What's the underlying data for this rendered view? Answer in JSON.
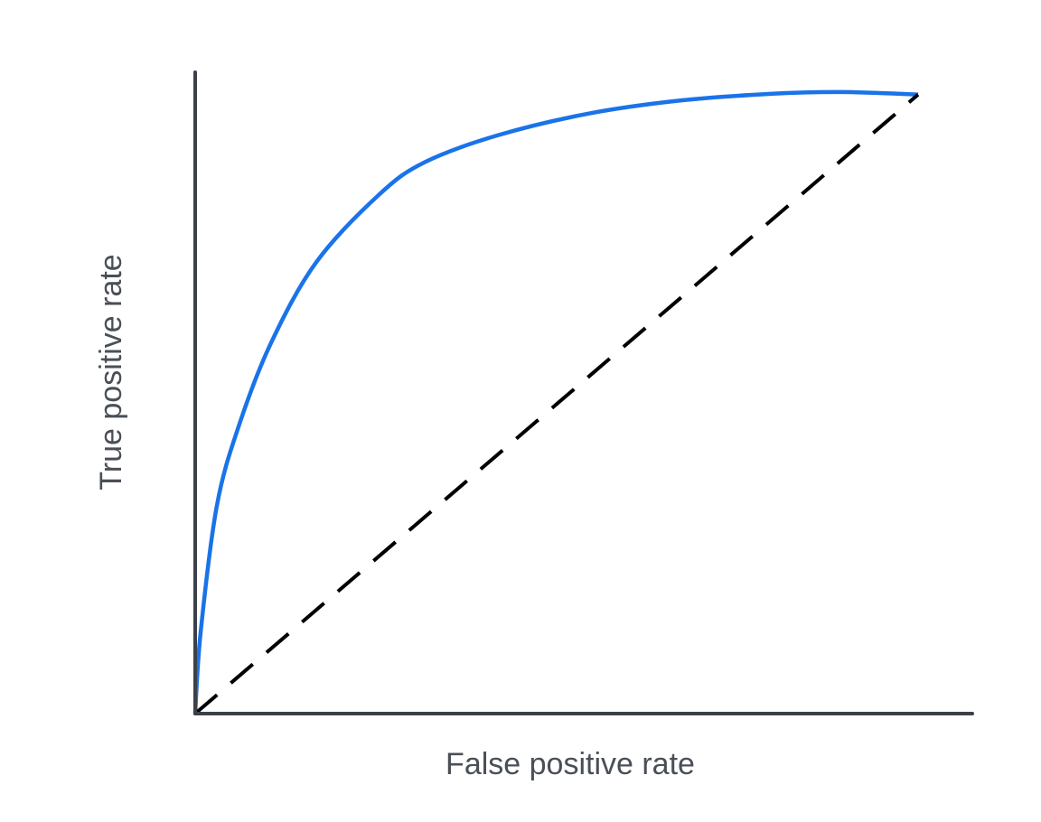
{
  "chart_data": {
    "type": "line",
    "xlabel": "False positive rate",
    "ylabel": "True positive rate",
    "xlim": [
      0,
      1.075
    ],
    "ylim": [
      0,
      1.036
    ],
    "series": [
      {
        "color": "#1a73e8",
        "line_style": "solid",
        "x": [
          0,
          0.0075,
          0.03,
          0.061,
          0.105,
          0.168,
          0.255,
          0.318,
          0.418,
          0.543,
          0.668,
          0.793,
          0.893,
          1
        ],
        "values": [
          0,
          0.131,
          0.336,
          0.467,
          0.599,
          0.73,
          0.839,
          0.891,
          0.934,
          0.969,
          0.99,
          1.001,
          1.004,
          1
        ]
      },
      {
        "color": "#000000",
        "line_style": "dashed",
        "x": [
          0,
          1
        ],
        "values": [
          0,
          1
        ]
      }
    ]
  }
}
